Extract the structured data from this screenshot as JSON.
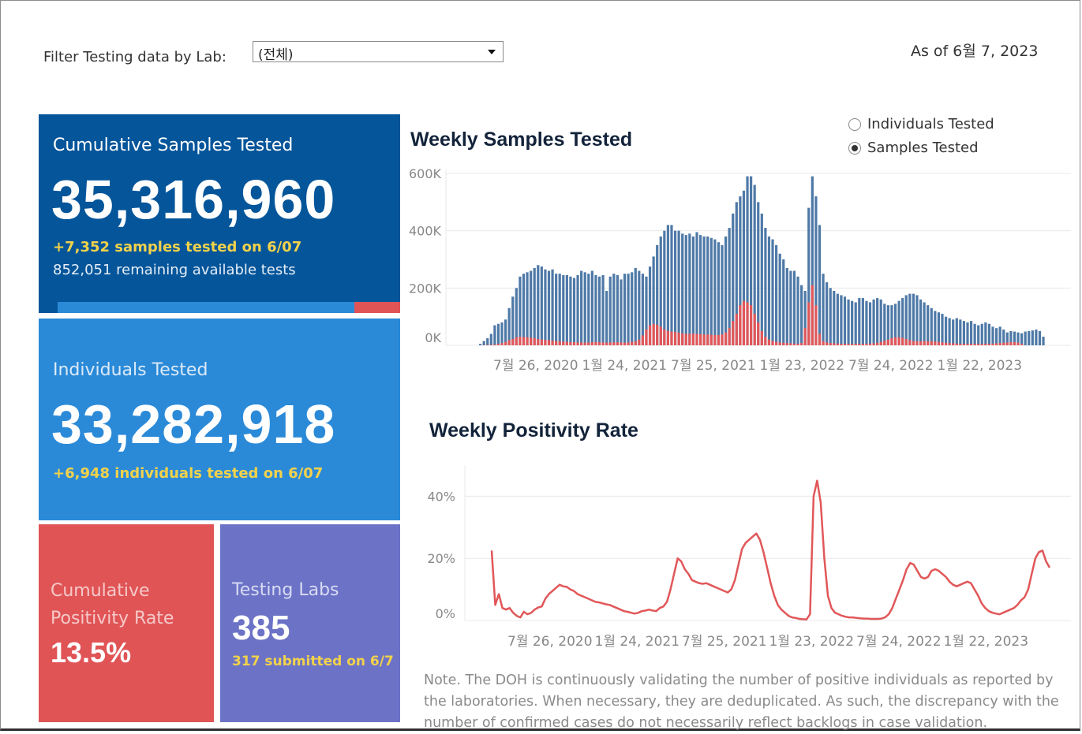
{
  "filter": {
    "label": "Filter Testing data by Lab:",
    "selected": "(전체)"
  },
  "as_of": "As of 6월 7, 2023",
  "cards": {
    "samples": {
      "title": "Cumulative Samples Tested",
      "value": "35,316,960",
      "delta": "+7,352 samples tested on 6/07",
      "remaining": "852,051 remaining available tests"
    },
    "individuals": {
      "title": "Individuals Tested",
      "value": "33,282,918",
      "delta": "+6,948  individuals  tested on 6/07"
    },
    "positivity": {
      "title_line1": "Cumulative",
      "title_line2": "Positivity Rate",
      "value": "13.5%"
    },
    "labs": {
      "title": "Testing Labs",
      "value": "385",
      "submitted": "317 submitted on 6/7"
    }
  },
  "toggle": {
    "options": [
      "Individuals Tested",
      "Samples Tested"
    ],
    "selected": "Samples Tested"
  },
  "colors": {
    "samples_card": "#04559a",
    "individuals_card": "#2b8ad8",
    "positivity_card": "#e05456",
    "labs_card": "#6c73c6",
    "bar_total": "#4e79a7",
    "bar_positive": "#e15759",
    "highlight": "#f2d24b"
  },
  "note": "Note. The DOH is continuously validating the number of positive individuals as reported by the laboratories. When necessary, they are deduplicated. As such, the discrepancy with the number of confirmed cases do not necessarily reflect backlogs in case validation.",
  "chart_data": [
    {
      "type": "bar",
      "title": "Weekly Samples Tested",
      "ylim": [
        0,
        600000
      ],
      "yticks": [
        "600K",
        "400K",
        "200K",
        "0K"
      ],
      "ytick_values": [
        600000,
        400000,
        200000,
        0
      ],
      "xticks": [
        "7월 26, 2020",
        "1월 24, 2021",
        "7월 25, 2021",
        "1월 23, 2022",
        "7월 24, 2022",
        "1월 22, 2023"
      ],
      "series": [
        {
          "name": "Samples Tested",
          "values": [
            5000,
            15000,
            25000,
            40000,
            70000,
            75000,
            80000,
            90000,
            130000,
            170000,
            200000,
            240000,
            250000,
            255000,
            260000,
            270000,
            280000,
            275000,
            265000,
            260000,
            265000,
            250000,
            250000,
            245000,
            245000,
            240000,
            235000,
            245000,
            260000,
            255000,
            250000,
            260000,
            245000,
            240000,
            245000,
            190000,
            240000,
            250000,
            245000,
            230000,
            250000,
            250000,
            255000,
            270000,
            260000,
            250000,
            240000,
            275000,
            310000,
            350000,
            380000,
            400000,
            420000,
            420000,
            400000,
            400000,
            390000,
            385000,
            390000,
            380000,
            395000,
            385000,
            380000,
            380000,
            375000,
            370000,
            360000,
            350000,
            380000,
            410000,
            460000,
            500000,
            520000,
            540000,
            590000,
            590000,
            560000,
            500000,
            460000,
            410000,
            380000,
            370000,
            350000,
            320000,
            300000,
            270000,
            260000,
            260000,
            240000,
            210000,
            190000,
            480000,
            590000,
            520000,
            420000,
            250000,
            220000,
            200000,
            190000,
            180000,
            175000,
            170000,
            160000,
            155000,
            150000,
            165000,
            165000,
            155000,
            150000,
            160000,
            165000,
            160000,
            145000,
            140000,
            140000,
            145000,
            155000,
            165000,
            175000,
            180000,
            180000,
            175000,
            160000,
            150000,
            140000,
            130000,
            120000,
            115000,
            110000,
            100000,
            95000,
            90000,
            95000,
            90000,
            85000,
            80000,
            85000,
            75000,
            70000,
            75000,
            80000,
            75000,
            65000,
            60000,
            65000,
            55000,
            45000,
            50000,
            48000,
            45000,
            42000,
            48000,
            50000,
            52000,
            55000,
            50000,
            30000
          ]
        },
        {
          "name": "Positive",
          "values": [
            0,
            1000,
            1500,
            2000,
            3000,
            5000,
            8000,
            12000,
            18000,
            22000,
            28000,
            30000,
            29000,
            28000,
            27000,
            25000,
            22000,
            20000,
            19000,
            18000,
            16000,
            15000,
            14000,
            13000,
            12000,
            11000,
            10500,
            10000,
            10000,
            9500,
            10000,
            11000,
            12000,
            11000,
            10000,
            9500,
            10000,
            10500,
            11000,
            10000,
            9500,
            10000,
            12000,
            14000,
            20000,
            35000,
            55000,
            70000,
            75000,
            72000,
            65000,
            55000,
            50000,
            48000,
            47000,
            44000,
            42000,
            40000,
            40000,
            41000,
            40000,
            39000,
            38000,
            38000,
            37000,
            36000,
            36000,
            38000,
            45000,
            60000,
            85000,
            110000,
            140000,
            155000,
            150000,
            140000,
            110000,
            80000,
            50000,
            30000,
            20000,
            15000,
            12000,
            10000,
            9000,
            8000,
            7000,
            6000,
            5000,
            8000,
            60000,
            150000,
            210000,
            140000,
            40000,
            15000,
            10000,
            8000,
            7000,
            6000,
            5500,
            5000,
            5000,
            5000,
            5000,
            5000,
            5000,
            5500,
            6000,
            7000,
            9000,
            12000,
            16000,
            20000,
            25000,
            28000,
            28000,
            26000,
            22000,
            18000,
            15000,
            14000,
            14000,
            15000,
            14000,
            15000,
            13000,
            12000,
            10000,
            9000,
            8000,
            7000,
            6000,
            5500,
            5000,
            5000,
            5000,
            5000,
            5000,
            5000,
            5000,
            5000,
            6000,
            7000,
            8000,
            9000,
            10000,
            11000,
            11000,
            9000,
            5000
          ]
        }
      ]
    },
    {
      "type": "line",
      "title": "Weekly Positivity Rate",
      "ylim": [
        0,
        0.5
      ],
      "yticks": [
        "40%",
        "20%",
        "0%"
      ],
      "ytick_values": [
        0.4,
        0.2,
        0.0
      ],
      "xticks": [
        "7월 26, 2020",
        "1월 24, 2021",
        "7월 25, 2021",
        "1월 23, 2022",
        "7월 24, 2022",
        "1월 22, 2023"
      ],
      "series": [
        {
          "name": "Positivity Rate",
          "values": [
            0.225,
            0.05,
            0.085,
            0.04,
            0.035,
            0.04,
            0.025,
            0.015,
            0.01,
            0.028,
            0.02,
            0.024,
            0.035,
            0.042,
            0.045,
            0.07,
            0.085,
            0.095,
            0.105,
            0.115,
            0.11,
            0.108,
            0.1,
            0.095,
            0.085,
            0.08,
            0.075,
            0.07,
            0.065,
            0.06,
            0.058,
            0.055,
            0.052,
            0.05,
            0.045,
            0.04,
            0.035,
            0.03,
            0.028,
            0.025,
            0.022,
            0.025,
            0.03,
            0.032,
            0.035,
            0.032,
            0.03,
            0.04,
            0.045,
            0.06,
            0.1,
            0.15,
            0.2,
            0.19,
            0.165,
            0.15,
            0.13,
            0.125,
            0.12,
            0.118,
            0.12,
            0.115,
            0.11,
            0.105,
            0.1,
            0.095,
            0.09,
            0.1,
            0.13,
            0.18,
            0.23,
            0.25,
            0.26,
            0.27,
            0.28,
            0.26,
            0.22,
            0.17,
            0.12,
            0.08,
            0.05,
            0.035,
            0.025,
            0.015,
            0.01,
            0.008,
            0.005,
            0.004,
            0.003,
            0.02,
            0.4,
            0.45,
            0.38,
            0.2,
            0.08,
            0.04,
            0.025,
            0.02,
            0.015,
            0.012,
            0.01,
            0.01,
            0.008,
            0.007,
            0.006,
            0.006,
            0.005,
            0.005,
            0.005,
            0.006,
            0.01,
            0.02,
            0.04,
            0.07,
            0.1,
            0.13,
            0.165,
            0.185,
            0.18,
            0.16,
            0.14,
            0.135,
            0.14,
            0.16,
            0.165,
            0.16,
            0.15,
            0.14,
            0.125,
            0.115,
            0.11,
            0.115,
            0.12,
            0.125,
            0.12,
            0.1,
            0.08,
            0.055,
            0.04,
            0.03,
            0.025,
            0.022,
            0.02,
            0.025,
            0.03,
            0.035,
            0.04,
            0.05,
            0.065,
            0.075,
            0.1,
            0.15,
            0.2,
            0.22,
            0.225,
            0.19,
            0.17
          ]
        }
      ]
    }
  ]
}
